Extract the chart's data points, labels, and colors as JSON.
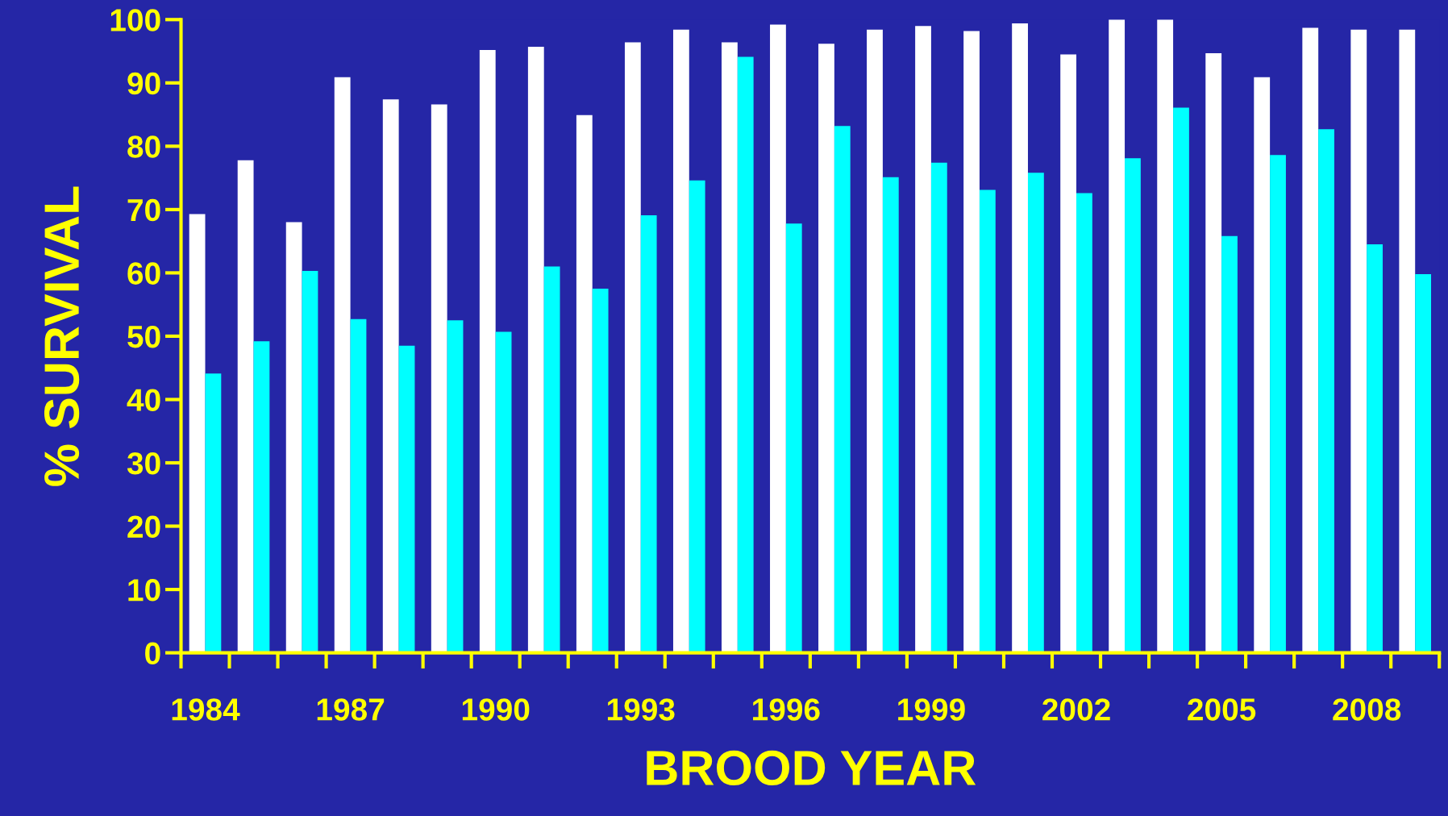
{
  "chart_data": {
    "type": "bar",
    "xlabel": "BROOD YEAR",
    "ylabel": "% SURVIVAL",
    "categories": [
      "1984",
      null,
      null,
      "1987",
      null,
      null,
      "1990",
      null,
      null,
      "1993",
      null,
      null,
      "1996",
      null,
      null,
      "1999",
      null,
      null,
      "2002",
      null,
      null,
      "2005",
      null,
      null,
      "2008",
      null
    ],
    "series": [
      {
        "color": "#ffffff",
        "values": [
          69.3,
          77.8,
          68.0,
          90.9,
          87.4,
          86.6,
          95.2,
          95.7,
          84.9,
          96.4,
          98.4,
          96.4,
          99.2,
          96.2,
          98.4,
          99.0,
          98.2,
          99.4,
          94.5,
          100,
          100,
          94.7,
          90.9,
          98.7,
          98.4,
          98.4
        ]
      },
      {
        "color": "#00ffff",
        "values": [
          44.1,
          49.2,
          60.3,
          52.7,
          48.5,
          52.5,
          50.7,
          61.0,
          57.5,
          69.1,
          74.6,
          94.1,
          67.8,
          83.2,
          75.1,
          77.4,
          73.1,
          75.8,
          72.6,
          78.1,
          86.1,
          65.8,
          78.6,
          82.7,
          64.5,
          59.8
        ]
      }
    ],
    "ylim": [
      0,
      100
    ],
    "yticks": [
      0,
      10,
      20,
      30,
      40,
      50,
      60,
      70,
      80,
      90,
      100
    ],
    "grid": false,
    "legend": false
  }
}
